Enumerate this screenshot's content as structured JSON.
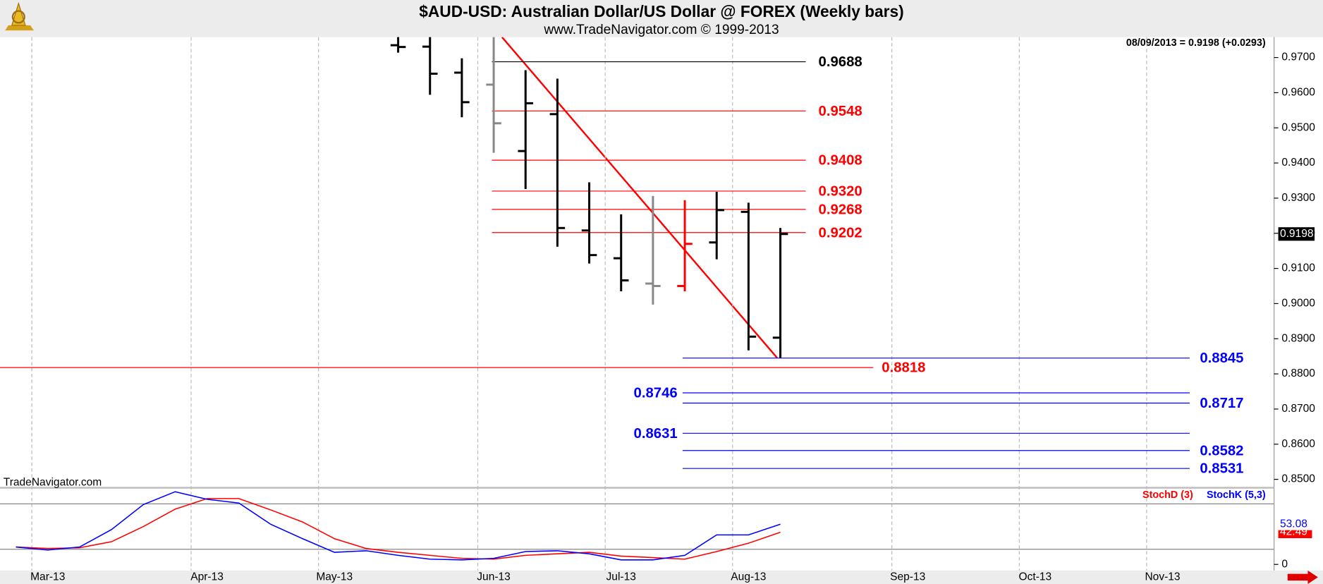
{
  "chart_data": [
    {
      "type": "ohlc",
      "title": "$AUD-USD:  Australian Dollar/US Dollar @ FOREX  (Weekly bars)",
      "subtitle": "www.TradeNavigator.com © 1999-2013",
      "annotation": "08/09/2013 = 0.9198 (+0.0293)",
      "watermark": "TradeNavigator.com",
      "categories": [
        null,
        "Mar-13",
        null,
        null,
        null,
        null,
        "Apr-13",
        null,
        null,
        null,
        "May-13",
        null,
        null,
        null,
        null,
        "Jun-13",
        null,
        null,
        null,
        "Jul-13",
        null,
        null,
        null,
        "Aug-13",
        null,
        null,
        null,
        null,
        "Sep-13",
        null,
        null,
        null,
        "Oct-13",
        null,
        null,
        null,
        "Nov-13",
        null,
        null,
        null
      ],
      "open": [
        null,
        null,
        null,
        null,
        null,
        null,
        null,
        null,
        null,
        null,
        null,
        null,
        0.9735,
        0.9731,
        0.9657,
        0.9623,
        0.9434,
        0.9539,
        0.9208,
        0.9129,
        0.9057,
        0.905,
        0.9174,
        0.9261,
        0.8903,
        null,
        null,
        null,
        null,
        null,
        null,
        null,
        null,
        null,
        null,
        null,
        null,
        null,
        null,
        null
      ],
      "high": [
        null,
        null,
        null,
        null,
        null,
        null,
        null,
        null,
        null,
        null,
        null,
        null,
        0.98,
        0.98,
        0.9698,
        0.977,
        0.9664,
        0.964,
        0.9345,
        0.9254,
        0.9306,
        0.9294,
        0.9318,
        0.9287,
        0.9215,
        null,
        null,
        null,
        null,
        null,
        null,
        null,
        null,
        null,
        null,
        null,
        null,
        null,
        null,
        null
      ],
      "low": [
        null,
        null,
        null,
        null,
        null,
        null,
        null,
        null,
        null,
        null,
        null,
        null,
        0.9714,
        0.9594,
        0.953,
        0.9429,
        0.9326,
        0.9162,
        0.9114,
        0.9035,
        0.8997,
        0.9035,
        0.9126,
        0.8867,
        0.8845,
        null,
        null,
        null,
        null,
        null,
        null,
        null,
        null,
        null,
        null,
        null,
        null,
        null,
        null,
        null
      ],
      "close": [
        null,
        null,
        null,
        null,
        null,
        null,
        null,
        null,
        null,
        null,
        null,
        null,
        0.973,
        0.9654,
        0.9573,
        0.9513,
        0.957,
        0.9215,
        0.9138,
        0.9066,
        0.905,
        0.917,
        0.9266,
        0.8906,
        0.9198,
        null,
        null,
        null,
        null,
        null,
        null,
        null,
        null,
        null,
        null,
        null,
        null,
        null,
        null,
        null
      ],
      "colors": [
        null,
        null,
        null,
        null,
        null,
        null,
        null,
        null,
        null,
        null,
        null,
        null,
        "#000000",
        "#000000",
        "#000000",
        "#888888",
        "#000000",
        "#000000",
        "#000000",
        "#000000",
        "#888888",
        "#ff0000",
        "#000000",
        "#000000",
        "#000000",
        null,
        null,
        null,
        null,
        null,
        null,
        null,
        null,
        null,
        null,
        null,
        null,
        null,
        null,
        null
      ],
      "last_price": 0.9198,
      "ylim": [
        0.8476,
        0.9758
      ],
      "yticks": [
        {
          "value": 0.97,
          "label": "0.9700"
        },
        {
          "value": 0.96,
          "label": "0.9600"
        },
        {
          "value": 0.95,
          "label": "0.9500"
        },
        {
          "value": 0.94,
          "label": "0.9400"
        },
        {
          "value": 0.93,
          "label": "0.9300"
        },
        {
          "value": 0.92,
          "label": "0.9200"
        },
        {
          "value": 0.91,
          "label": "0.9100"
        },
        {
          "value": 0.9,
          "label": "0.9000"
        },
        {
          "value": 0.89,
          "label": "0.8900"
        },
        {
          "value": 0.88,
          "label": "0.8800"
        },
        {
          "value": 0.87,
          "label": "0.8700"
        },
        {
          "value": 0.86,
          "label": "0.8600"
        },
        {
          "value": 0.85,
          "label": "0.8500"
        }
      ],
      "levels": [
        {
          "value": 0.9688,
          "color": "#000000"
        },
        {
          "value": 0.9548,
          "color": "#ff0000"
        },
        {
          "value": 0.9408,
          "color": "#ff0000"
        },
        {
          "value": 0.932,
          "label": "0.9320",
          "color": "#ff0000"
        },
        {
          "value": 0.9268,
          "color": "#ff0000"
        },
        {
          "value": 0.9202,
          "color": "#ff0000"
        },
        {
          "value": 0.8818,
          "color": "#ff0000"
        },
        {
          "value": 0.8845,
          "color": "#0000ff"
        },
        {
          "value": 0.8746,
          "color": "#0000ff"
        },
        {
          "value": 0.8717,
          "color": "#0000ff"
        },
        {
          "value": 0.8631,
          "color": "#0000ff"
        },
        {
          "value": 0.8582,
          "color": "#0000ff"
        },
        {
          "value": 0.8531,
          "color": "#0000ff"
        }
      ]
    },
    {
      "type": "line",
      "series": [
        {
          "name": "StochD (3)",
          "color": "#ff0000",
          "values": [
            23,
            21,
            22,
            30,
            50,
            73,
            87,
            87,
            72,
            56,
            34,
            21,
            16,
            12,
            8,
            7,
            12,
            14,
            16,
            11,
            9,
            7,
            17,
            28,
            42.49,
            null,
            null,
            null,
            null,
            null,
            null,
            null,
            null,
            null,
            null,
            null,
            null,
            null,
            null,
            null
          ]
        },
        {
          "name": "StochK (5,3)",
          "color": "#0000ff",
          "values": [
            23,
            19,
            23,
            46,
            79,
            96,
            86,
            81,
            53,
            34,
            16,
            18,
            12,
            7,
            6,
            8,
            17,
            18,
            14,
            6,
            6,
            12,
            39,
            39,
            53.08,
            null,
            null,
            null,
            null,
            null,
            null,
            null,
            null,
            null,
            null,
            null,
            null,
            null,
            null,
            null
          ]
        }
      ],
      "ylim": [
        -8,
        99
      ],
      "yticks": [
        0
      ],
      "levels": [
        20,
        80
      ]
    }
  ]
}
